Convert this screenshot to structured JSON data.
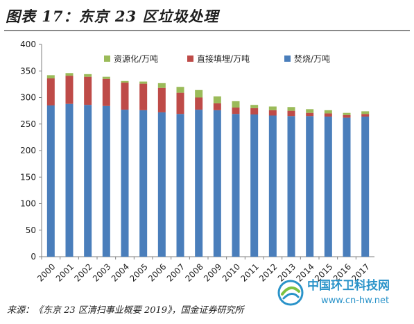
{
  "title": "图表 17：东京 23 区垃圾处理",
  "source": "来源：《东京 23 区清扫事业概要 2019》，国金证券研究所",
  "watermark": {
    "name": "中国环卫科技网",
    "url": "www.cn-hw.net"
  },
  "colors": {
    "incineration": "#4a7ebb",
    "landfill": "#be4b48",
    "resource": "#9bbb59",
    "axis": "#7f7f7f",
    "grid": "#d9d9d9",
    "text": "#1f1f1f"
  },
  "chart_data": {
    "type": "bar",
    "stacked": true,
    "categories": [
      "2000",
      "2001",
      "2002",
      "2003",
      "2004",
      "2005",
      "2006",
      "2007",
      "2008",
      "2009",
      "2010",
      "2011",
      "2012",
      "2013",
      "2014",
      "2015",
      "2016",
      "2017"
    ],
    "series": [
      {
        "name": "焚烧/万吨",
        "values": [
          285,
          288,
          286,
          284,
          277,
          276,
          272,
          269,
          277,
          276,
          269,
          268,
          266,
          265,
          265,
          264,
          262,
          264
        ]
      },
      {
        "name": "直接填埋/万吨",
        "values": [
          51,
          53,
          53,
          51,
          51,
          50,
          46,
          40,
          23,
          13,
          12,
          12,
          10,
          10,
          6,
          6,
          5,
          5
        ]
      },
      {
        "name": "资源化/万吨",
        "values": [
          6,
          5,
          5,
          4,
          3,
          4,
          9,
          11,
          14,
          13,
          12,
          6,
          7,
          7,
          7,
          6,
          4,
          5
        ]
      }
    ],
    "legend_order": [
      "资源化/万吨",
      "直接填埋/万吨",
      "焚烧/万吨"
    ],
    "yticks": [
      "0",
      "50",
      "100",
      "150",
      "200",
      "250",
      "300",
      "350",
      "400"
    ],
    "ylim": [
      0,
      400
    ],
    "xlabel": "",
    "ylabel": "",
    "grid": false,
    "legend_position": "top"
  }
}
